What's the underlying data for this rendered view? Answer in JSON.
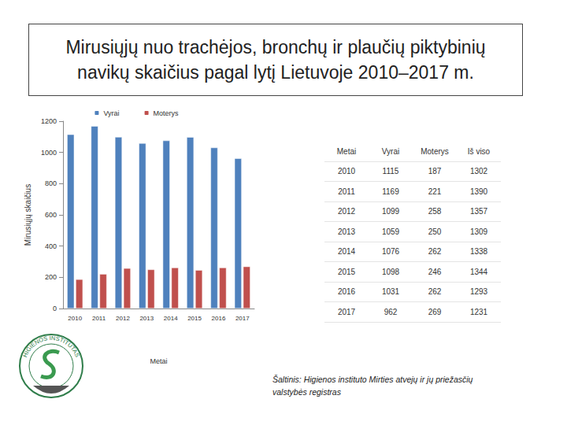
{
  "title": "Mirusiųjų nuo trachėjos, bronchų ir plaučių piktybinių navikų skaičius pagal lytį Lietuvoje 2010–2017 m.",
  "chart_data": {
    "type": "bar",
    "x_label": "Metai",
    "y_label": "Mirusiųjų skaičius",
    "categories": [
      "2010",
      "2011",
      "2012",
      "2013",
      "2014",
      "2015",
      "2016",
      "2017"
    ],
    "series": [
      {
        "name": "Vyrai",
        "color": "#4f81bd",
        "values": [
          1115,
          1169,
          1099,
          1059,
          1076,
          1098,
          1031,
          962
        ]
      },
      {
        "name": "Moterys",
        "color": "#c0504d",
        "values": [
          187,
          221,
          258,
          250,
          262,
          246,
          262,
          269
        ]
      }
    ],
    "ylim": [
      0,
      1200
    ],
    "yticks": [
      0,
      200,
      400,
      600,
      800,
      1000,
      1200
    ],
    "grid": false,
    "legend": "top"
  },
  "table": {
    "columns": [
      "Metai",
      "Vyrai",
      "Moterys",
      "Iš viso"
    ],
    "rows": [
      [
        2010,
        1115,
        187,
        1302
      ],
      [
        2011,
        1169,
        221,
        1390
      ],
      [
        2012,
        1099,
        258,
        1357
      ],
      [
        2013,
        1059,
        250,
        1309
      ],
      [
        2014,
        1076,
        262,
        1338
      ],
      [
        2015,
        1098,
        246,
        1344
      ],
      [
        2016,
        1031,
        262,
        1293
      ],
      [
        2017,
        962,
        269,
        1231
      ]
    ]
  },
  "source": "Šaltinis: Higienos instituto Mirties atvejų ir jų priežasčių valstybės registras",
  "logo_text": "HIGIENOS INSTITUTAS"
}
